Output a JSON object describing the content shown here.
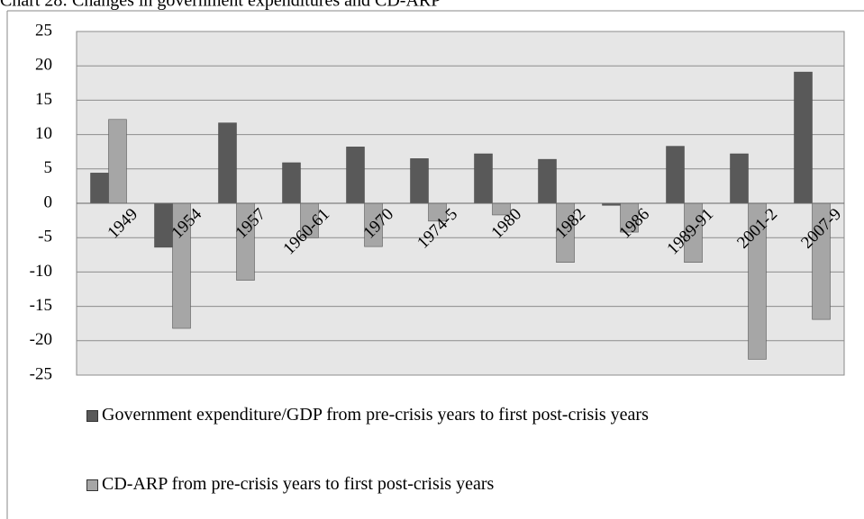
{
  "chart_data": {
    "type": "bar",
    "title": "Chart 28: Changes in government expenditures and CD-ARP",
    "categories": [
      "1949",
      "1954",
      "1957",
      "1960-61",
      "1970",
      "1974-5",
      "1980",
      "1982",
      "1986",
      "1989-91",
      "2001-2",
      "2007-9"
    ],
    "series": [
      {
        "name": "Government expenditure/GDP from pre-crisis years to first post-crisis years",
        "color": "#595959",
        "values": [
          4.4,
          -6.4,
          11.7,
          5.9,
          8.2,
          6.5,
          7.2,
          6.4,
          -0.3,
          8.3,
          7.2,
          19.1
        ]
      },
      {
        "name": "CD-ARP from pre-crisis years to first post-crisis years",
        "color": "#a6a6a6",
        "values": [
          12.2,
          -18.2,
          -11.2,
          -5.0,
          -6.3,
          -2.6,
          -1.7,
          -8.6,
          -4.2,
          -8.6,
          -22.7,
          -16.9
        ]
      }
    ],
    "ylim": [
      -25,
      25
    ],
    "yticks": [
      -25,
      -20,
      -15,
      -10,
      -5,
      0,
      5,
      10,
      15,
      20,
      25
    ],
    "grid": true
  }
}
